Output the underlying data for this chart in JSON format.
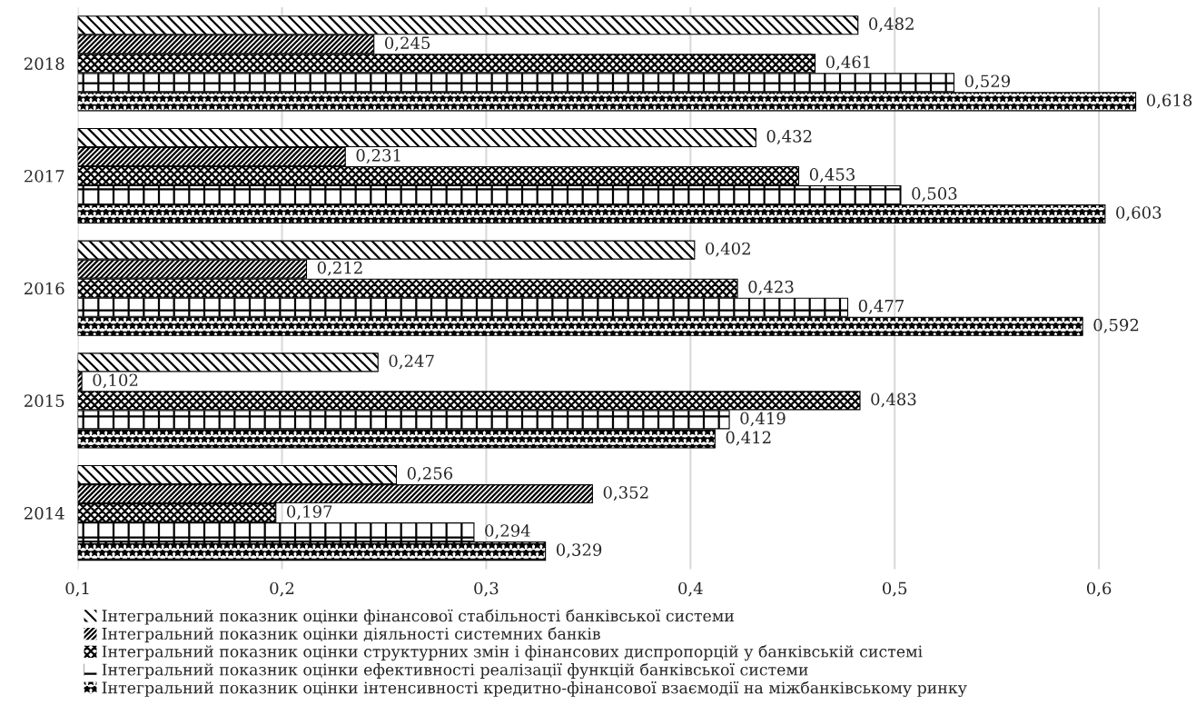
{
  "chart_data": {
    "type": "bar",
    "orientation": "horizontal",
    "categories": [
      "2018",
      "2017",
      "2016",
      "2015",
      "2014"
    ],
    "series": [
      {
        "name": "Інтегральний показник оцінки фінансової стабільності банківської системи",
        "color": "#000000",
        "values": [
          0.482,
          0.432,
          0.402,
          0.247,
          0.256
        ],
        "value_labels": [
          "0,482",
          "0,432",
          "0,402",
          "0,247",
          "0,256"
        ]
      },
      {
        "name": "Інтегральний показник оцінки діяльності системних банків",
        "color": "#000000",
        "values": [
          0.245,
          0.231,
          0.212,
          0.102,
          0.352
        ],
        "value_labels": [
          "0,245",
          "0,231",
          "0,212",
          "0,102",
          "0,352"
        ]
      },
      {
        "name": "Інтегральний показник оцінки структурних змін і фінансових диспропорцій у банківській системі",
        "color": "#000000",
        "values": [
          0.461,
          0.453,
          0.423,
          0.483,
          0.197
        ],
        "value_labels": [
          "0,461",
          "0,453",
          "0,423",
          "0,483",
          "0,197"
        ]
      },
      {
        "name": "Інтегральний показник оцінки ефективності реалізації функцій банківської системи",
        "color": "#000000",
        "values": [
          0.529,
          0.503,
          0.477,
          0.419,
          0.294
        ],
        "value_labels": [
          "0,529",
          "0,503",
          "0,477",
          "0,419",
          "0,294"
        ]
      },
      {
        "name": "Інтегральний показник оцінки інтенсивності кредитно-фінансової взаємодії на міжбанківському ринку",
        "color": "#000000",
        "values": [
          0.618,
          0.603,
          0.592,
          0.412,
          0.329
        ],
        "value_labels": [
          "0,618",
          "0,603",
          "0,592",
          "0,412",
          "0,329"
        ]
      }
    ],
    "xlim": [
      0.1,
      0.62
    ],
    "xticks": [
      {
        "value": 0.1,
        "label": "0,1"
      },
      {
        "value": 0.2,
        "label": "0,2"
      },
      {
        "value": 0.3,
        "label": "0,3"
      },
      {
        "value": 0.4,
        "label": "0,4"
      },
      {
        "value": 0.5,
        "label": "0,5"
      },
      {
        "value": 0.6,
        "label": "0,6"
      }
    ],
    "grid": "x",
    "legend": "bottom"
  }
}
